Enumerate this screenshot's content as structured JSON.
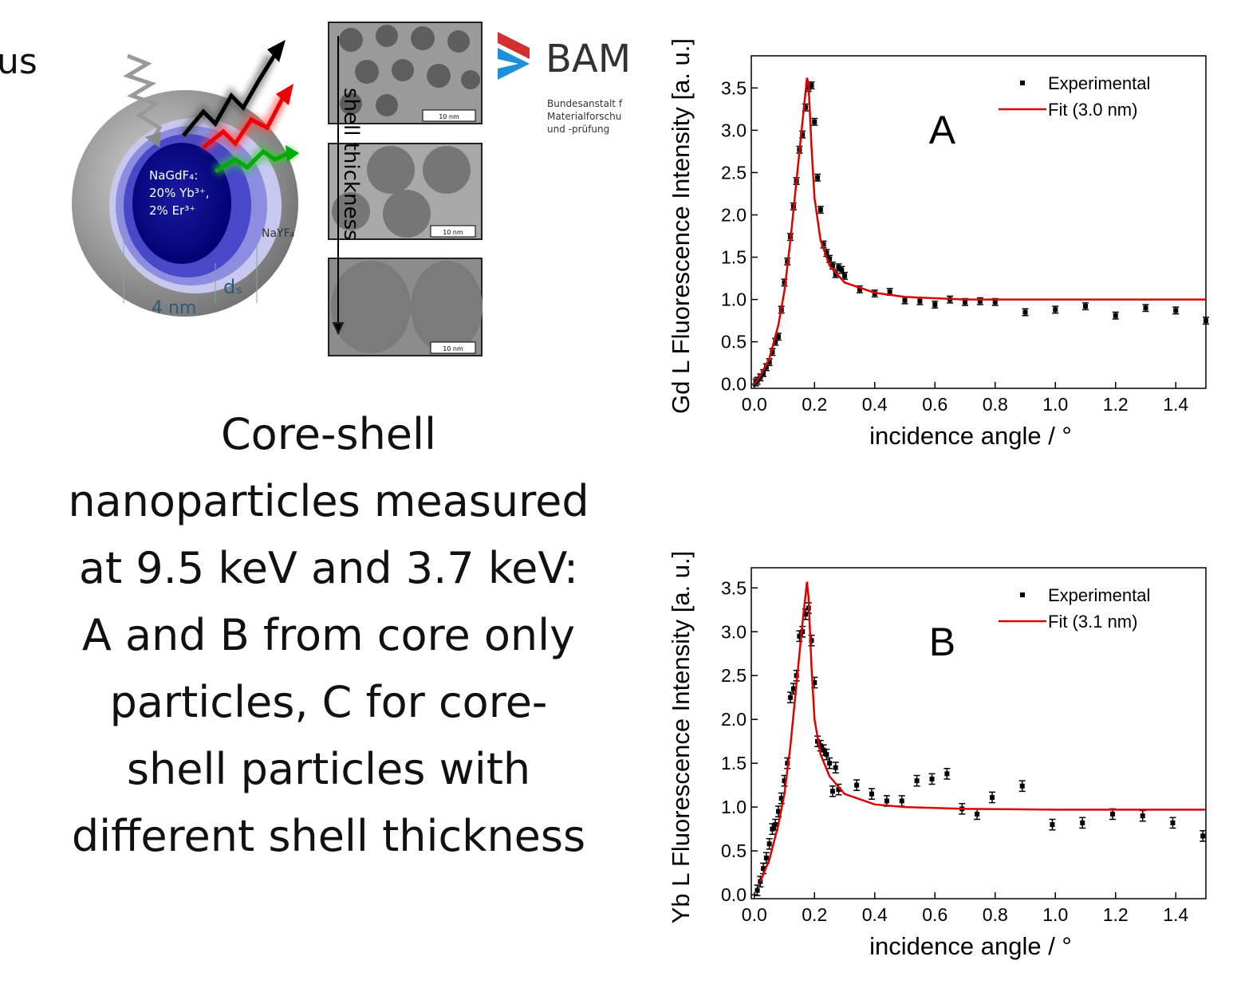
{
  "slide": {
    "cut_title": "us",
    "body_lines": [
      "Core-shell",
      "nanoparticles measured",
      "at 9.5 keV and 3.7 keV:",
      "A and B from core only",
      "particles, C for core-",
      "shell particles with",
      "different shell thickness"
    ]
  },
  "diagram": {
    "core_label": [
      "NaGdF₄:",
      "20% Yb³⁺,",
      "2% Er³⁺"
    ],
    "shell_label": "NaYF₄",
    "core_size": "4 nm",
    "shell_size": "dₛ",
    "tem_arrow_label": "shell thickness",
    "scale_bars": [
      "10 nm",
      "10 nm",
      "10 nm"
    ],
    "logo": {
      "name": "BAM",
      "lines": [
        "Bundesanstalt f",
        "Materialforschu",
        "und -prüfung"
      ]
    }
  },
  "chart_data": [
    {
      "type": "scatter",
      "annotation": "A",
      "x_label": "incidence angle / °",
      "y_label": "Gd L Fluorescence Intensity [a. u.]",
      "xlim": [
        -0.01,
        1.5
      ],
      "ylim": [
        -0.05,
        3.88
      ],
      "xticks": [
        {
          "value": 0,
          "label": "0.0"
        },
        0.2,
        0.4,
        0.6,
        0.8,
        {
          "value": 1,
          "label": "1.0"
        },
        1.2,
        1.4
      ],
      "yticks": [
        {
          "value": 0,
          "label": "0.0"
        },
        0.5,
        {
          "value": 1,
          "label": "1.0"
        },
        1.5,
        {
          "value": 2,
          "label": "2.0"
        },
        2.5,
        {
          "value": 3,
          "label": "3.0"
        },
        3.5
      ],
      "legend": "upper right",
      "series": [
        {
          "name": "Experimental",
          "mode": "markers",
          "color": "#000000",
          "x": [
            0.005,
            0.01,
            0.02,
            0.03,
            0.04,
            0.05,
            0.06,
            0.07,
            0.08,
            0.09,
            0.1,
            0.11,
            0.12,
            0.13,
            0.14,
            0.15,
            0.16,
            0.17,
            0.18,
            0.19,
            0.2,
            0.21,
            0.22,
            0.23,
            0.24,
            0.25,
            0.26,
            0.27,
            0.28,
            0.29,
            0.3,
            0.35,
            0.4,
            0.45,
            0.5,
            0.55,
            0.6,
            0.65,
            0.7,
            0.75,
            0.8,
            0.9,
            1.0,
            1.1,
            1.2,
            1.3,
            1.4,
            1.5
          ],
          "values": [
            0.02,
            0.04,
            0.08,
            0.13,
            0.2,
            0.26,
            0.38,
            0.5,
            0.56,
            0.88,
            1.2,
            1.45,
            1.74,
            2.1,
            2.4,
            2.77,
            2.95,
            3.27,
            3.5,
            3.53,
            3.1,
            2.44,
            2.06,
            1.65,
            1.55,
            1.48,
            1.4,
            1.3,
            1.38,
            1.35,
            1.28,
            1.12,
            1.07,
            1.09,
            0.99,
            0.98,
            0.94,
            1.0,
            0.97,
            0.98,
            0.97,
            0.85,
            0.88,
            0.92,
            0.81,
            0.9,
            0.87,
            0.75
          ],
          "errors": [
            0.04,
            0.04,
            0.04,
            0.04,
            0.04,
            0.04,
            0.04,
            0.04,
            0.04,
            0.04,
            0.04,
            0.04,
            0.04,
            0.04,
            0.04,
            0.04,
            0.04,
            0.04,
            0.04,
            0.04,
            0.04,
            0.04,
            0.04,
            0.04,
            0.04,
            0.04,
            0.04,
            0.04,
            0.04,
            0.04,
            0.04,
            0.04,
            0.04,
            0.04,
            0.04,
            0.04,
            0.04,
            0.04,
            0.04,
            0.04,
            0.04,
            0.04,
            0.04,
            0.04,
            0.04,
            0.04,
            0.04,
            0.04
          ]
        },
        {
          "name": "Fit (3.0 nm)",
          "mode": "line",
          "color": "#e00000",
          "x": [
            0,
            0.02,
            0.05,
            0.08,
            0.1,
            0.12,
            0.14,
            0.16,
            0.175,
            0.18,
            0.19,
            0.2,
            0.22,
            0.25,
            0.3,
            0.4,
            0.5,
            0.7,
            1.0,
            1.5
          ],
          "values": [
            0,
            0.1,
            0.3,
            0.7,
            1.1,
            1.7,
            2.4,
            3.1,
            3.62,
            3.55,
            2.8,
            2.2,
            1.7,
            1.4,
            1.2,
            1.08,
            1.03,
            1.0,
            1.0,
            1.0
          ]
        }
      ]
    },
    {
      "type": "scatter",
      "annotation": "B",
      "x_label": "incidence angle / °",
      "y_label": "Yb L Fluorescence Intensity [a. u.]",
      "xlim": [
        -0.01,
        1.5
      ],
      "ylim": [
        -0.045,
        3.73
      ],
      "xticks": [
        {
          "value": 0,
          "label": "0.0"
        },
        0.2,
        0.4,
        0.6,
        0.8,
        {
          "value": 1,
          "label": "1.0"
        },
        1.2,
        1.4
      ],
      "yticks": [
        {
          "value": 0,
          "label": "0.0"
        },
        0.5,
        {
          "value": 1,
          "label": "1.0"
        },
        1.5,
        {
          "value": 2,
          "label": "2.0"
        },
        2.5,
        {
          "value": 3,
          "label": "3.0"
        },
        3.5
      ],
      "legend": "upper right",
      "series": [
        {
          "name": "Experimental",
          "mode": "markers",
          "color": "#000000",
          "x": [
            0.01,
            0.02,
            0.03,
            0.04,
            0.05,
            0.06,
            0.07,
            0.08,
            0.09,
            0.1,
            0.11,
            0.12,
            0.13,
            0.14,
            0.15,
            0.16,
            0.17,
            0.18,
            0.19,
            0.2,
            0.21,
            0.22,
            0.23,
            0.24,
            0.25,
            0.26,
            0.27,
            0.28,
            0.34,
            0.39,
            0.44,
            0.49,
            0.54,
            0.59,
            0.64,
            0.69,
            0.74,
            0.79,
            0.89,
            0.99,
            1.09,
            1.19,
            1.29,
            1.39,
            1.49
          ],
          "values": [
            0.05,
            0.15,
            0.3,
            0.42,
            0.58,
            0.75,
            0.8,
            0.95,
            1.1,
            1.3,
            1.5,
            2.25,
            2.35,
            2.5,
            2.95,
            3.0,
            3.2,
            3.27,
            2.9,
            2.42,
            1.75,
            1.7,
            1.65,
            1.6,
            1.5,
            1.18,
            1.45,
            1.2,
            1.25,
            1.15,
            1.07,
            1.07,
            1.3,
            1.32,
            1.38,
            0.98,
            0.92,
            1.11,
            1.24,
            0.8,
            0.82,
            0.92,
            0.9,
            0.82,
            0.67
          ],
          "errors": [
            0.06,
            0.06,
            0.06,
            0.06,
            0.06,
            0.06,
            0.06,
            0.06,
            0.06,
            0.06,
            0.06,
            0.06,
            0.06,
            0.06,
            0.06,
            0.06,
            0.06,
            0.06,
            0.06,
            0.06,
            0.06,
            0.06,
            0.06,
            0.06,
            0.06,
            0.06,
            0.06,
            0.06,
            0.06,
            0.06,
            0.06,
            0.06,
            0.06,
            0.06,
            0.06,
            0.06,
            0.06,
            0.06,
            0.06,
            0.06,
            0.06,
            0.06,
            0.06,
            0.06,
            0.06
          ]
        },
        {
          "name": "Fit (3.1 nm)",
          "mode": "line",
          "color": "#e00000",
          "x": [
            0.02,
            0.05,
            0.08,
            0.1,
            0.12,
            0.14,
            0.16,
            0.175,
            0.18,
            0.19,
            0.2,
            0.22,
            0.25,
            0.3,
            0.4,
            0.5,
            0.7,
            1.0,
            1.5
          ],
          "values": [
            0.15,
            0.4,
            0.8,
            1.15,
            1.7,
            2.4,
            3.1,
            3.57,
            3.4,
            2.6,
            2.0,
            1.6,
            1.35,
            1.15,
            1.03,
            1.0,
            0.98,
            0.97,
            0.97
          ]
        }
      ]
    }
  ]
}
